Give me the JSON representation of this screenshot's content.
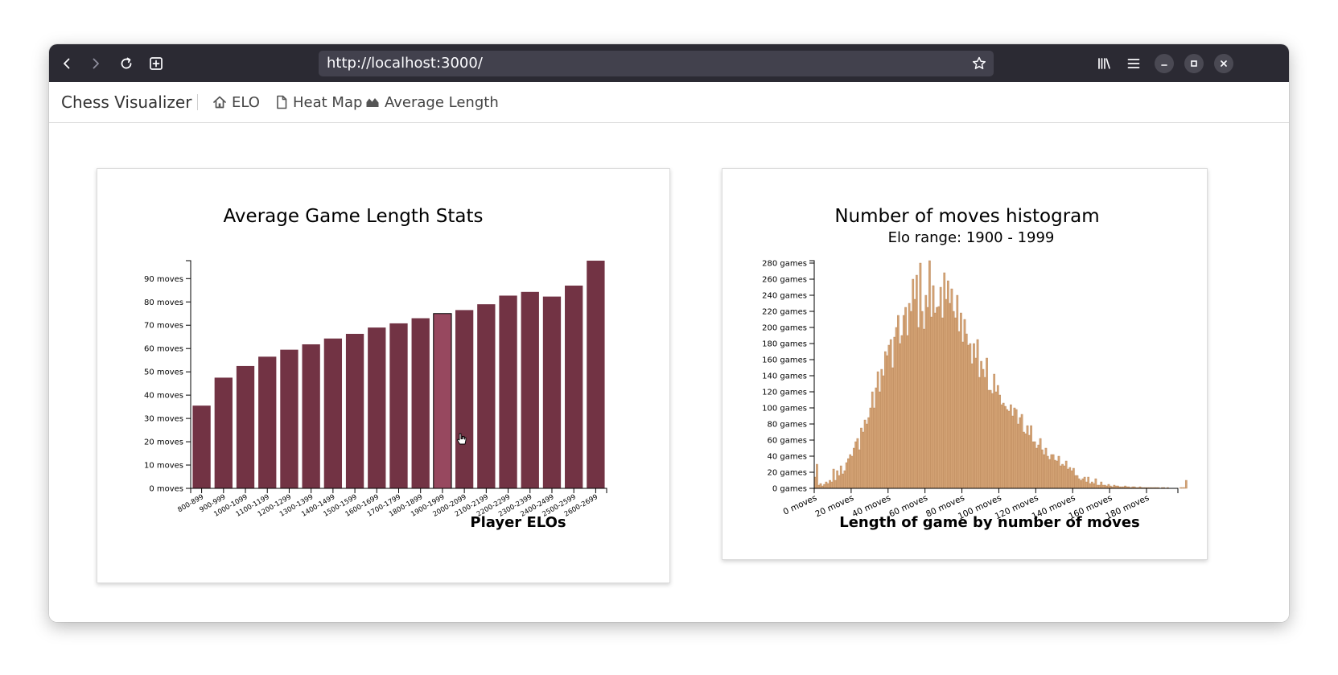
{
  "browser": {
    "url": "http://localhost:3000/"
  },
  "navbar": {
    "brand": "Chess Visualizer",
    "items": [
      {
        "label": "ELO",
        "icon": "home-icon"
      },
      {
        "label": "Heat Map",
        "icon": "document-icon"
      },
      {
        "label": "Average Length",
        "icon": "area-chart-icon"
      }
    ]
  },
  "colors": {
    "bar": "#723344",
    "bar_highlight": "#97485f",
    "hist": "#d3a274",
    "hist_stroke": "#b88558"
  },
  "chart_data": [
    {
      "type": "bar",
      "title": "Average Game Length Stats",
      "xlabel": "Player ELOs",
      "ylabel": "",
      "categories": [
        "800-899",
        "900-999",
        "1000-1099",
        "1100-1199",
        "1200-1299",
        "1300-1399",
        "1400-1499",
        "1500-1599",
        "1600-1699",
        "1700-1799",
        "1800-1899",
        "1900-1999",
        "2000-2099",
        "2100-2199",
        "2200-2299",
        "2300-2399",
        "2400-2499",
        "2500-2599",
        "2600-2699"
      ],
      "values": [
        35.5,
        47.5,
        52.5,
        56.5,
        59.5,
        61.8,
        64.3,
        66.3,
        69.0,
        70.8,
        73.0,
        75.0,
        76.5,
        79.0,
        82.7,
        84.3,
        82.3,
        87.0,
        97.7
      ],
      "highlighted": "1900-1999",
      "yticks": [
        "0 moves",
        "10 moves",
        "20 moves",
        "30 moves",
        "40 moves",
        "50 moves",
        "60 moves",
        "70 moves",
        "80 moves",
        "90 moves"
      ],
      "ylim": [
        0,
        97.7
      ],
      "grid": false
    },
    {
      "type": "bar",
      "title": "Number of moves histogram",
      "subtitle": "Elo range: 1900 - 1999",
      "xlabel": "Length of game by number of moves",
      "ylabel": "",
      "xticks": [
        "0 moves",
        "20 moves",
        "40 moves",
        "60 moves",
        "80 moves",
        "100 moves",
        "120 moves",
        "140 moves",
        "160 moves",
        "180 moves"
      ],
      "yticks": [
        "0 games",
        "20 games",
        "40 games",
        "60 games",
        "80 games",
        "100 games",
        "120 games",
        "140 games",
        "160 games",
        "180 games",
        "200 games",
        "220 games",
        "240 games",
        "260 games",
        "280 games"
      ],
      "xlim": [
        0,
        197
      ],
      "ylim": [
        0,
        283
      ],
      "bin_width": 1,
      "x_start": 0,
      "values": [
        14,
        30,
        4,
        6,
        3,
        5,
        8,
        6,
        10,
        8,
        24,
        10,
        22,
        16,
        28,
        18,
        22,
        32,
        37,
        42,
        40,
        50,
        58,
        62,
        48,
        75,
        70,
        85,
        80,
        88,
        100,
        120,
        100,
        125,
        145,
        120,
        148,
        140,
        170,
        165,
        178,
        185,
        150,
        188,
        200,
        215,
        180,
        190,
        215,
        225,
        190,
        230,
        220,
        260,
        235,
        265,
        200,
        280,
        220,
        198,
        240,
        225,
        283,
        213,
        252,
        218,
        225,
        226,
        250,
        212,
        268,
        235,
        258,
        230,
        248,
        220,
        212,
        240,
        195,
        218,
        182,
        210,
        192,
        178,
        180,
        155,
        180,
        162,
        185,
        138,
        158,
        148,
        138,
        162,
        122,
        122,
        118,
        142,
        120,
        128,
        116,
        104,
        106,
        102,
        98,
        96,
        104,
        90,
        100,
        98,
        80,
        88,
        92,
        70,
        68,
        78,
        66,
        78,
        58,
        58,
        50,
        54,
        62,
        48,
        42,
        50,
        40,
        36,
        42,
        42,
        35,
        34,
        40,
        28,
        30,
        28,
        34,
        24,
        26,
        22,
        25,
        16,
        16,
        12,
        10,
        12,
        14,
        8,
        14,
        6,
        8,
        6,
        12,
        4,
        4,
        8,
        4,
        4,
        3,
        5,
        3,
        2,
        4,
        3,
        3,
        2,
        2,
        2,
        3,
        2,
        2,
        1,
        2,
        2,
        1,
        1,
        2,
        1,
        1,
        1,
        1,
        1,
        1,
        1,
        1,
        1,
        1,
        0,
        1,
        1,
        0,
        1,
        0,
        0,
        0,
        0,
        0,
        0,
        1,
        1,
        1,
        10
      ]
    }
  ]
}
